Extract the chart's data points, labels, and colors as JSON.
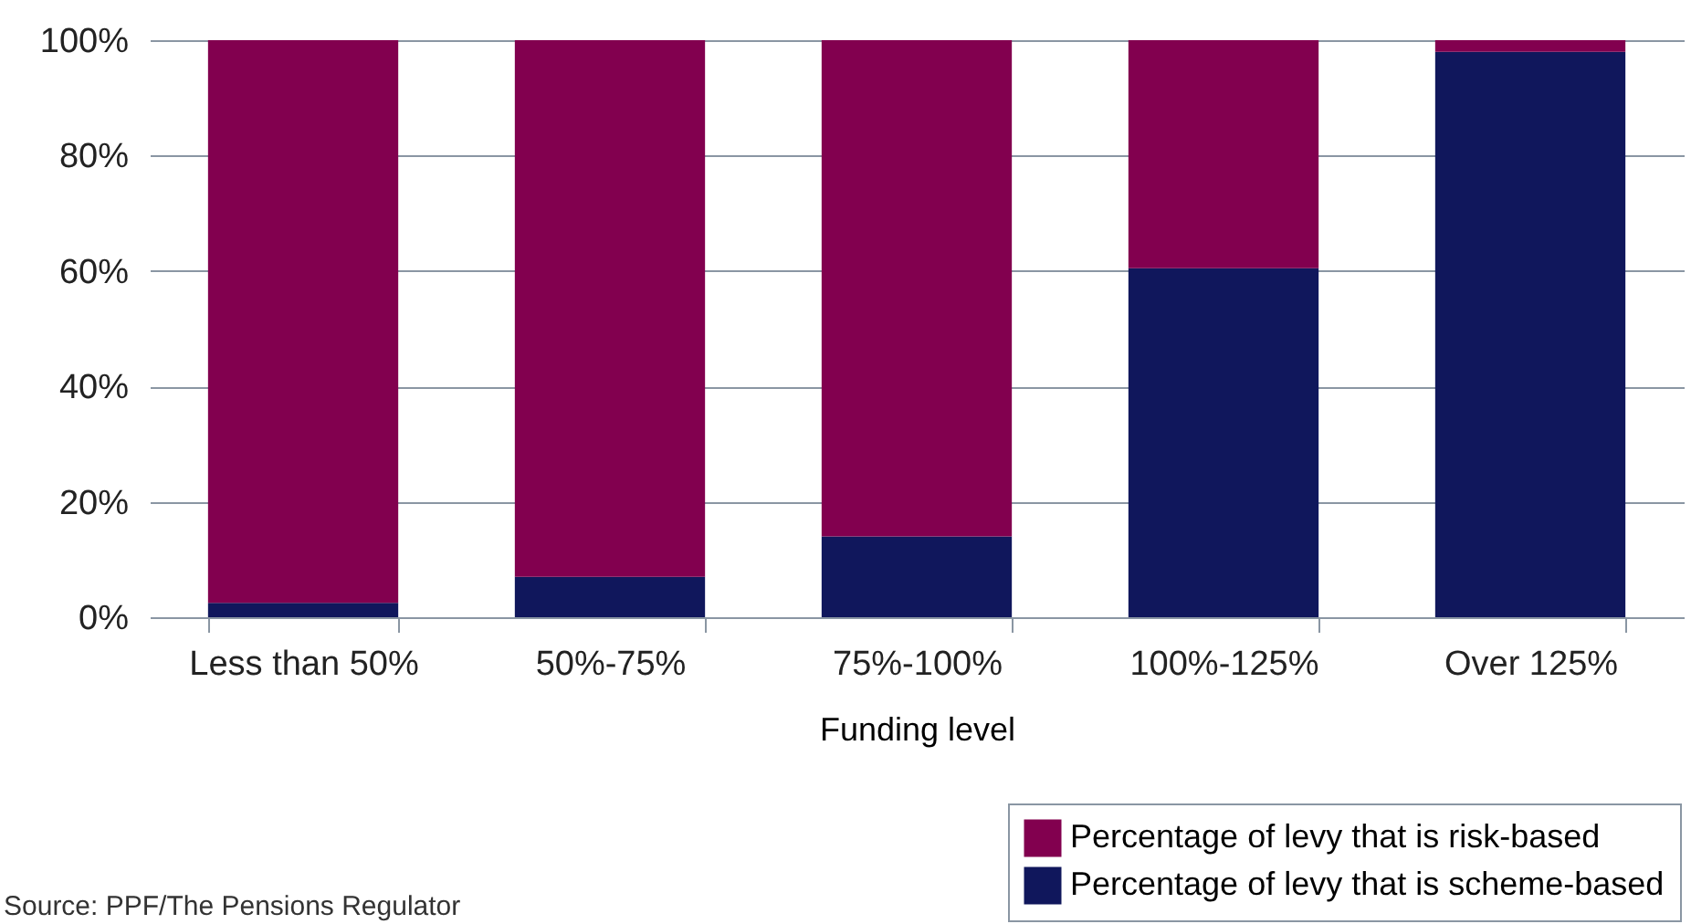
{
  "chart_data": {
    "type": "bar",
    "stacked": true,
    "xlabel": "Funding level",
    "categories": [
      "Less than 50%",
      "50%-75%",
      "75%-100%",
      "100%-125%",
      "Over 125%"
    ],
    "series": [
      {
        "name": "Percentage of levy that is scheme-based",
        "color": "#10175c",
        "values": [
          2.5,
          7,
          14,
          60.5,
          98
        ]
      },
      {
        "name": "Percentage of levy that is risk-based",
        "color": "#82004f",
        "values": [
          97.5,
          93,
          86,
          39.5,
          2
        ]
      }
    ],
    "ylim": [
      0,
      100
    ],
    "yticks": [
      {
        "value": 0,
        "label": "0%"
      },
      {
        "value": 20,
        "label": "20%"
      },
      {
        "value": 40,
        "label": "40%"
      },
      {
        "value": 60,
        "label": "60%"
      },
      {
        "value": 80,
        "label": "80%"
      },
      {
        "value": 100,
        "label": "100%"
      }
    ],
    "grid": "y",
    "legend": "bottom right",
    "annotations": [
      "Source: PPF/The Pensions Regulator"
    ]
  }
}
